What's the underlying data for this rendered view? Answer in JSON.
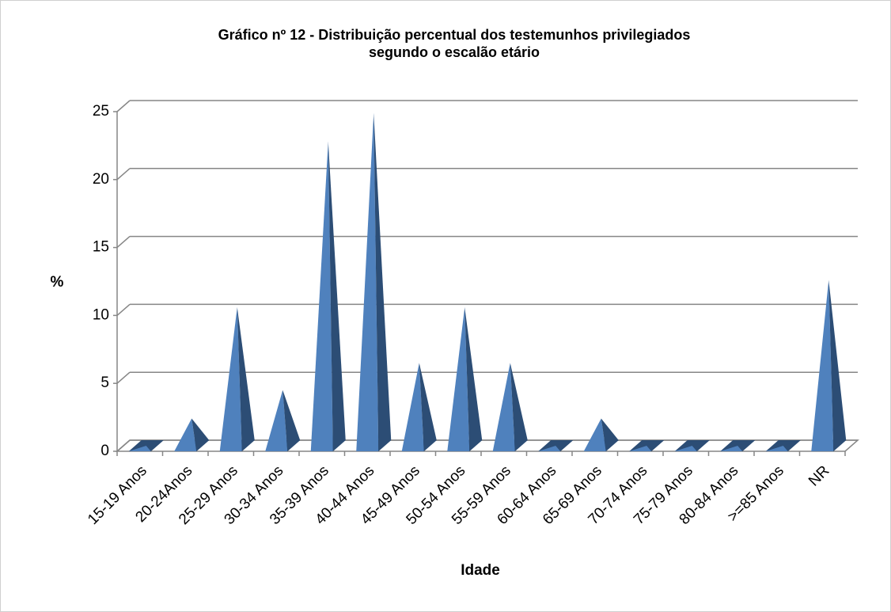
{
  "chart_data": {
    "type": "pyramid3d",
    "title": [
      "Gráfico nº 12 - Distribuição percentual dos testemunhos privilegiados",
      "segundo o escalão etário"
    ],
    "x_label": "Idade",
    "y_label": "%",
    "categories": [
      "15-19 Anos",
      "20-24Anos",
      "25-29 Anos",
      "30-34 Anos",
      "35-39 Anos",
      "40-44 Anos",
      "45-49 Anos",
      "50-54 Anos",
      "55-59 Anos",
      "60-64 Anos",
      "65-69 Anos",
      "70-74 Anos",
      "75-79 Anos",
      "80-84 Anos",
      ">=85 Anos",
      "NR"
    ],
    "values": [
      0,
      2.0,
      10.2,
      4.1,
      22.4,
      24.5,
      6.1,
      10.2,
      6.1,
      0,
      2.0,
      0,
      0,
      0,
      0,
      12.2
    ],
    "color": "#4f81bd",
    "ylim": [
      0,
      25
    ],
    "yticks": [
      0,
      5,
      10,
      15,
      20,
      25
    ],
    "grid": true
  }
}
